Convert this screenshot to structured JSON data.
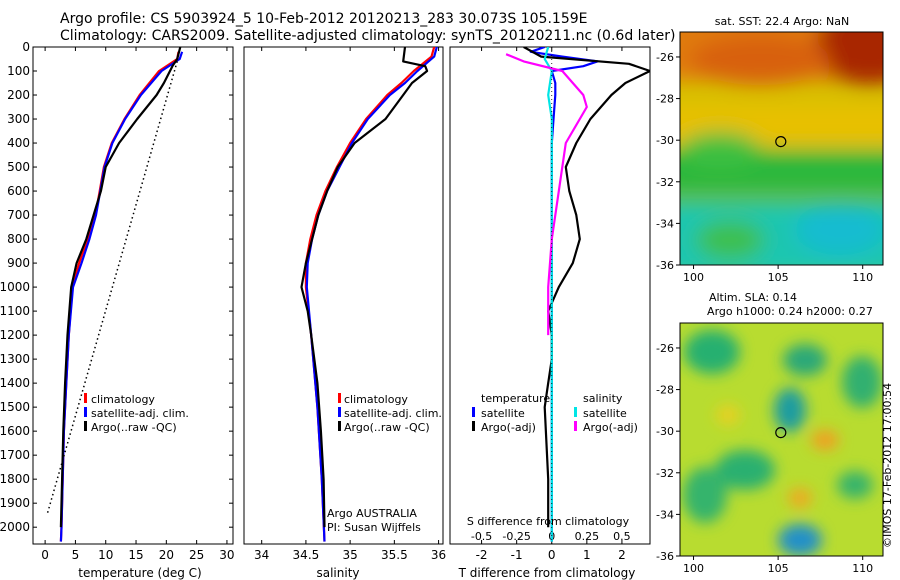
{
  "title_line1": "Argo profile: CS 5903924_5 10-Feb-2012 20120213_283 30.073S 105.159E",
  "title_line2": "Climatology: CARS2009. Satellite-adjusted climatology: synTS_20120211.nc (0.6d later)",
  "credit": "©IMOS 17-Feb-2012 17:00:54",
  "colors": {
    "climatology": "#ff0000",
    "satellite": "#0000ff",
    "argo": "#000000",
    "sal_satellite": "#00e5e5",
    "sal_argo": "#ff00ff"
  },
  "chart_data": [
    {
      "type": "line",
      "xlabel": "temperature (deg C)",
      "xticks": [
        0,
        5,
        10,
        15,
        20,
        25,
        30
      ],
      "xlim": [
        -2,
        31
      ],
      "yticks": [
        0,
        100,
        200,
        300,
        400,
        500,
        600,
        700,
        800,
        900,
        1000,
        1100,
        1200,
        1300,
        1400,
        1500,
        1600,
        1700,
        1800,
        1900,
        2000
      ],
      "ylim": [
        2070,
        0
      ],
      "legend": [
        "climatology",
        "satellite-adj. clim.",
        "Argo(..raw -QC)"
      ],
      "series": [
        {
          "name": "climatology",
          "color": "#ff0000",
          "depth": [
            20,
            50,
            100,
            150,
            200,
            300,
            400,
            500,
            600,
            700,
            800,
            900,
            1000,
            1200,
            1400,
            1600,
            1800,
            2000,
            2060
          ],
          "values": [
            22.0,
            21.8,
            18.8,
            17.2,
            15.6,
            13.1,
            11.0,
            9.7,
            9.0,
            8.3,
            7.0,
            5.6,
            4.5,
            3.9,
            3.5,
            3.1,
            2.9,
            2.7,
            2.6
          ]
        },
        {
          "name": "satellite-adj. clim.",
          "color": "#0000ff",
          "depth": [
            20,
            50,
            100,
            150,
            200,
            300,
            400,
            500,
            600,
            700,
            800,
            900,
            1000,
            1200,
            1400,
            1600,
            1800,
            2000,
            2060
          ],
          "values": [
            22.6,
            22.2,
            19.2,
            17.5,
            15.8,
            13.2,
            11.1,
            9.8,
            9.1,
            8.4,
            7.3,
            6.0,
            4.6,
            3.9,
            3.5,
            3.1,
            2.9,
            2.7,
            2.6
          ]
        },
        {
          "name": "Argo(..raw -QC)",
          "color": "#000000",
          "depth": [
            0,
            50,
            80,
            150,
            200,
            300,
            400,
            500,
            600,
            700,
            800,
            900,
            1000,
            1200,
            1400,
            1600,
            1800,
            2000
          ],
          "values": [
            22.3,
            21.8,
            21.0,
            19.6,
            18.4,
            15.2,
            12.2,
            10.0,
            9.2,
            8.0,
            6.8,
            5.2,
            4.3,
            3.7,
            3.3,
            3.0,
            2.8,
            2.6
          ]
        },
        {
          "name": "",
          "color": "#000000",
          "dotted": true,
          "depth": [
            60,
            1950
          ],
          "values": [
            21.8,
            0.3
          ]
        }
      ]
    },
    {
      "type": "line",
      "xlabel": "salinity",
      "xticks": [
        34,
        34.5,
        35,
        35.5,
        36
      ],
      "xlim": [
        33.8,
        36.05
      ],
      "ylim": [
        2070,
        0
      ],
      "legend": [
        "climatology",
        "satellite-adj. clim.",
        "Argo(..raw -QC)"
      ],
      "annotation": [
        "Argo AUSTRALIA",
        "PI: Susan Wijffels"
      ],
      "series": [
        {
          "name": "climatology",
          "color": "#ff0000",
          "depth": [
            0,
            40,
            100,
            150,
            200,
            300,
            400,
            500,
            600,
            700,
            800,
            900,
            1000,
            1200,
            1500,
            1800,
            2060
          ],
          "values": [
            35.95,
            35.92,
            35.72,
            35.58,
            35.42,
            35.18,
            35.0,
            34.85,
            34.72,
            34.62,
            34.55,
            34.5,
            34.5,
            34.56,
            34.63,
            34.68,
            34.71
          ]
        },
        {
          "name": "satellite-adj. clim.",
          "color": "#0000ff",
          "depth": [
            0,
            40,
            100,
            150,
            200,
            300,
            400,
            500,
            600,
            700,
            800,
            900,
            1000,
            1200,
            1500,
            1800,
            2060
          ],
          "values": [
            35.98,
            35.95,
            35.76,
            35.62,
            35.45,
            35.2,
            35.02,
            34.88,
            34.74,
            34.64,
            34.57,
            34.52,
            34.51,
            34.56,
            34.63,
            34.68,
            34.71
          ]
        },
        {
          "name": "Argo(..raw -QC)",
          "color": "#000000",
          "depth": [
            0,
            60,
            80,
            100,
            150,
            200,
            300,
            400,
            500,
            600,
            700,
            800,
            900,
            1000,
            1100,
            1200,
            1400,
            1600,
            1800,
            2000
          ],
          "values": [
            35.62,
            35.6,
            35.85,
            35.87,
            35.7,
            35.6,
            35.4,
            35.05,
            34.86,
            34.74,
            34.64,
            34.57,
            34.5,
            34.45,
            34.52,
            34.56,
            34.63,
            34.67,
            34.7,
            34.71
          ]
        }
      ]
    },
    {
      "type": "line",
      "xlabel": "T difference from climatology",
      "xlabel_top": "S difference from climatology",
      "xticks": [
        -2,
        -1,
        0,
        1,
        2
      ],
      "xticks_top_labels": [
        "-0.5",
        "-0.25",
        "0",
        "0.25",
        "0.5"
      ],
      "xticks_top_values": [
        -2,
        -1,
        0,
        1,
        2
      ],
      "xlim": [
        -2.9,
        2.8
      ],
      "ylim": [
        2070,
        0
      ],
      "legend_groups": [
        {
          "header": "temperature",
          "items": [
            "satellite",
            "Argo(-adj)"
          ]
        },
        {
          "header": "salinity",
          "items": [
            "satellite",
            "Argo(-adj)"
          ]
        }
      ],
      "series": [
        {
          "name": "temperature satellite",
          "color": "#0000ff",
          "depth": [
            0,
            20,
            40,
            60,
            80,
            100,
            150,
            200,
            300,
            400,
            500,
            600,
            800,
            1000,
            1200,
            1500,
            2060
          ],
          "values": [
            -0.2,
            -0.6,
            0.3,
            1.3,
            0.9,
            0.0,
            0.1,
            0.1,
            0.05,
            0.0,
            0.0,
            0.0,
            0.0,
            0.0,
            0.0,
            0.0,
            0.0
          ]
        },
        {
          "name": "temperature Argo(-adj)",
          "color": "#000000",
          "depth": [
            0,
            40,
            70,
            100,
            150,
            200,
            300,
            400,
            500,
            600,
            700,
            800,
            900,
            1000,
            1100,
            1200,
            1300,
            1400,
            1500,
            1800,
            2000
          ],
          "values": [
            -0.8,
            -0.3,
            2.2,
            2.8,
            2.1,
            1.7,
            1.1,
            0.7,
            0.4,
            0.5,
            0.7,
            0.8,
            0.6,
            0.2,
            -0.1,
            0.0,
            0.0,
            -0.1,
            -0.2,
            -0.1,
            -0.1
          ]
        },
        {
          "name": "salinity satellite",
          "color": "#00e5e5",
          "depth": [
            0,
            50,
            100,
            200,
            300,
            500,
            800,
            1200,
            1600,
            2060
          ],
          "values": [
            -0.1,
            -0.2,
            0.0,
            -0.1,
            0.0,
            0.0,
            0.0,
            0.0,
            0.0,
            0.0
          ]
        },
        {
          "name": "salinity Argo(-adj)",
          "color": "#ff00ff",
          "depth": [
            30,
            60,
            100,
            150,
            200,
            250,
            300,
            350,
            400,
            500,
            600,
            800,
            1000,
            1200
          ],
          "values": [
            -1.3,
            -0.8,
            0.3,
            0.6,
            0.9,
            1.0,
            0.8,
            0.6,
            0.4,
            0.3,
            0.2,
            0.0,
            -0.1,
            -0.1
          ]
        }
      ]
    },
    {
      "type": "heatmap",
      "title": "sat. SST: 22.4 Argo: NaN",
      "xticks": [
        100,
        105,
        110
      ],
      "xlim": [
        99.2,
        111.2
      ],
      "yticks": [
        -26,
        -28,
        -30,
        -32,
        -34,
        -36
      ],
      "ylim": [
        -36,
        -24.8
      ],
      "marker": {
        "lon": 105.16,
        "lat": -30.07
      }
    },
    {
      "type": "heatmap",
      "title_line1": "Altim. SLA: 0.14",
      "title_line2": "Argo h1000: 0.24 h2000: 0.27",
      "xticks": [
        100,
        105,
        110
      ],
      "xlim": [
        99.2,
        111.2
      ],
      "yticks": [
        -26,
        -28,
        -30,
        -32,
        -34,
        -36
      ],
      "ylim": [
        -36,
        -24.8
      ],
      "marker": {
        "lon": 105.16,
        "lat": -30.07
      }
    }
  ]
}
